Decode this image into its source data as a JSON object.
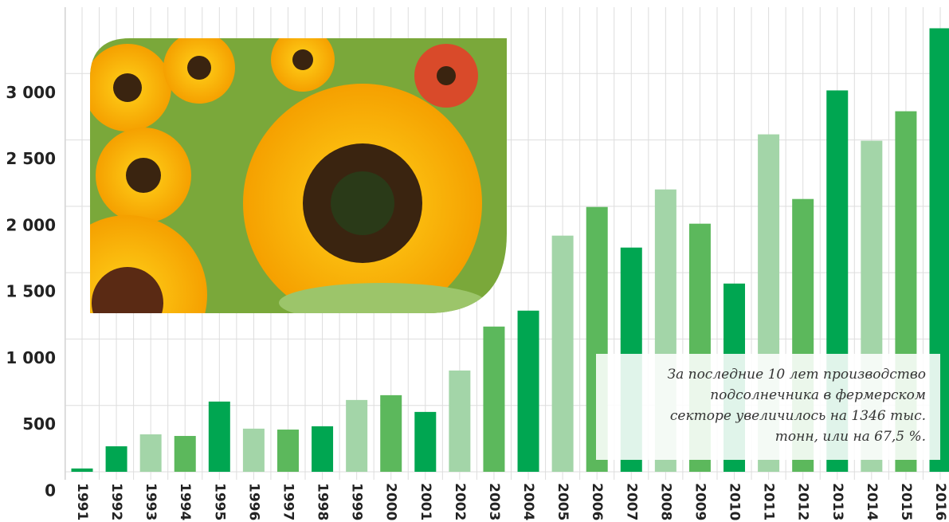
{
  "chart_data": {
    "type": "bar",
    "categories": [
      "1991",
      "1992",
      "1993",
      "1994",
      "1995",
      "1996",
      "1997",
      "1998",
      "1999",
      "2000",
      "2001",
      "2002",
      "2003",
      "2004",
      "2005",
      "2006",
      "2007",
      "2008",
      "2009",
      "2010",
      "2011",
      "2012",
      "2013",
      "2014",
      "2015",
      "2016"
    ],
    "values": [
      25,
      192,
      282,
      270,
      529,
      325,
      318,
      343,
      541,
      577,
      451,
      763,
      1094,
      1214,
      1779,
      1995,
      1689,
      2127,
      1869,
      1418,
      2542,
      2055,
      2873,
      2494,
      2716,
      3341
    ],
    "colors": [
      "#00a651",
      "#00a651",
      "#a3d5a8",
      "#5cb85c",
      "#00a651",
      "#a3d5a8",
      "#5cb85c",
      "#00a651",
      "#a3d5a8",
      "#5cb85c",
      "#00a651",
      "#a3d5a8",
      "#5cb85c",
      "#00a651",
      "#a3d5a8",
      "#5cb85c",
      "#00a651",
      "#a3d5a8",
      "#5cb85c",
      "#00a651",
      "#a3d5a8",
      "#5cb85c",
      "#00a651",
      "#a3d5a8",
      "#5cb85c",
      "#00a651"
    ],
    "ylim": [
      0,
      3500
    ],
    "yticks": [
      0,
      500,
      {
        "value": 1000,
        "label": "1 000"
      },
      {
        "value": 1500,
        "label": "1 500"
      },
      {
        "value": 2000,
        "label": "2 000"
      },
      {
        "value": 2500,
        "label": "2 500"
      },
      {
        "value": 3000,
        "label": "3 000"
      }
    ],
    "grid": true,
    "annotation": [
      "За последние 10 лет производство",
      "подсолнечника в фермерском",
      "секторе увеличилось на 1346 тыс.",
      "тонн, или на 67,5 %."
    ]
  }
}
